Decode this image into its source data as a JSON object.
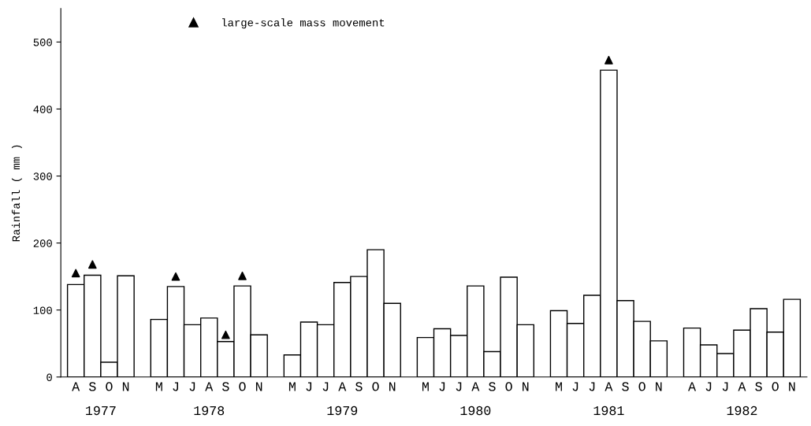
{
  "chart_data": {
    "type": "bar",
    "ylabel": "Rainfall ( mm )",
    "categories": [
      "A",
      "S",
      "O",
      "N",
      null,
      "M",
      "J",
      "J",
      "A",
      "S",
      "O",
      "N",
      null,
      "M",
      "J",
      "J",
      "A",
      "S",
      "O",
      "N",
      null,
      "M",
      "J",
      "J",
      "A",
      "S",
      "O",
      "N",
      null,
      "M",
      "J",
      "J",
      "A",
      "S",
      "O",
      "N",
      null,
      "A",
      "J",
      "J",
      "A",
      "S",
      "O",
      "N"
    ],
    "ylim": [
      0,
      550
    ],
    "yticks": [
      0,
      100,
      200,
      300,
      400,
      500
    ],
    "legend": "top left",
    "annotations": [
      "1977",
      "1978",
      "1979",
      "1980",
      "1981",
      "1982"
    ],
    "series": [
      {
        "color": "#ffffff",
        "values": [
          138,
          152,
          22,
          151,
          null,
          86,
          135,
          78,
          88,
          53,
          136,
          63,
          null,
          33,
          82,
          78,
          141,
          150,
          190,
          110,
          null,
          59,
          72,
          62,
          136,
          38,
          149,
          78,
          null,
          99,
          80,
          122,
          458,
          114,
          83,
          54,
          null,
          73,
          48,
          35,
          70,
          102,
          67,
          116
        ]
      },
      {
        "type": "scatter",
        "name": "large-scale mass movement",
        "color": "#000000",
        "marker": "triangle",
        "values": [
          155,
          168,
          null,
          null,
          null,
          null,
          150,
          null,
          null,
          63,
          151,
          null,
          null,
          null,
          null,
          null,
          null,
          null,
          null,
          null,
          null,
          null,
          null,
          null,
          null,
          null,
          null,
          null,
          null,
          null,
          null,
          null,
          473,
          null,
          null,
          null,
          null,
          null,
          null,
          null,
          null,
          null,
          null,
          null
        ]
      }
    ]
  }
}
